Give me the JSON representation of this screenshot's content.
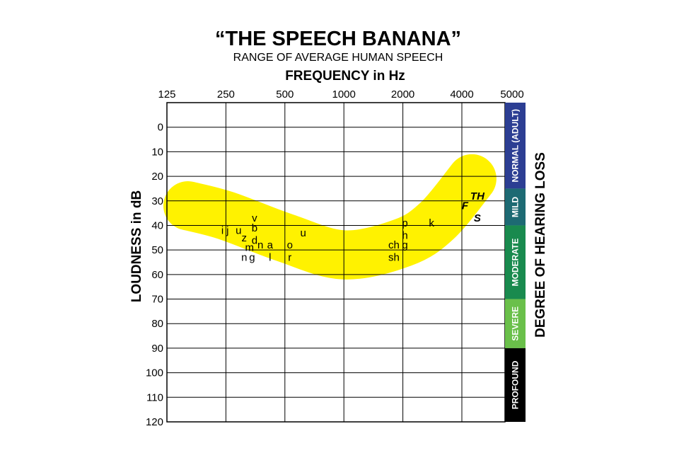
{
  "chart_data": {
    "type": "scatter",
    "title": "“THE SPEECH BANANA”",
    "subtitle": "RANGE OF AVERAGE HUMAN SPEECH",
    "xlabel": "FREQUENCY in Hz",
    "ylabel": "LOUDNESS in dB",
    "x_scale": "log2",
    "y_inverted": true,
    "x_ticks": [
      {
        "value": 125,
        "label": "125"
      },
      {
        "value": 250,
        "label": "250"
      },
      {
        "value": 500,
        "label": "500"
      },
      {
        "value": 1000,
        "label": "1000"
      },
      {
        "value": 2000,
        "label": "2000"
      },
      {
        "value": 4000,
        "label": "4000"
      },
      {
        "value": 5000,
        "label": "5000"
      }
    ],
    "y_ticks": [
      {
        "value": 0,
        "label": "0"
      },
      {
        "value": 10,
        "label": "10"
      },
      {
        "value": 20,
        "label": "20"
      },
      {
        "value": 30,
        "label": "30"
      },
      {
        "value": 40,
        "label": "40"
      },
      {
        "value": 50,
        "label": "50"
      },
      {
        "value": 60,
        "label": "60"
      },
      {
        "value": 70,
        "label": "70"
      },
      {
        "value": 80,
        "label": "80"
      },
      {
        "value": 90,
        "label": "90"
      },
      {
        "value": 100,
        "label": "100"
      },
      {
        "value": 110,
        "label": "110"
      },
      {
        "value": 120,
        "label": "120"
      }
    ],
    "xlim": [
      125,
      6400
    ],
    "ylim": [
      -10,
      120
    ],
    "grid": true,
    "banana": {
      "color": "#fff200",
      "center_points": [
        [
          160,
          32
        ],
        [
          250,
          36
        ],
        [
          500,
          45
        ],
        [
          1000,
          52
        ],
        [
          2000,
          47
        ],
        [
          3000,
          38
        ],
        [
          4500,
          21
        ]
      ],
      "thickness_db": 20
    },
    "points": [
      {
        "label": "i",
        "x": 240,
        "y": 42,
        "bold": false
      },
      {
        "label": "j",
        "x": 255,
        "y": 42,
        "bold": false
      },
      {
        "label": "u",
        "x": 290,
        "y": 42,
        "bold": false
      },
      {
        "label": "z",
        "x": 310,
        "y": 45,
        "bold": false
      },
      {
        "label": "v",
        "x": 350,
        "y": 37,
        "bold": false
      },
      {
        "label": "b",
        "x": 350,
        "y": 41,
        "bold": false
      },
      {
        "label": "d",
        "x": 350,
        "y": 46,
        "bold": false
      },
      {
        "label": "m",
        "x": 330,
        "y": 49,
        "bold": false
      },
      {
        "label": "n",
        "x": 310,
        "y": 53,
        "bold": false
      },
      {
        "label": "g",
        "x": 340,
        "y": 53,
        "bold": false
      },
      {
        "label": "n",
        "x": 375,
        "y": 48,
        "bold": false
      },
      {
        "label": "a",
        "x": 420,
        "y": 48,
        "bold": false
      },
      {
        "label": "l",
        "x": 420,
        "y": 53,
        "bold": false
      },
      {
        "label": "o",
        "x": 530,
        "y": 48,
        "bold": false
      },
      {
        "label": "r",
        "x": 530,
        "y": 53,
        "bold": false
      },
      {
        "label": "u",
        "x": 620,
        "y": 43,
        "bold": false
      },
      {
        "label": "ch",
        "x": 1800,
        "y": 48,
        "bold": false
      },
      {
        "label": "sh",
        "x": 1800,
        "y": 53,
        "bold": false
      },
      {
        "label": "p",
        "x": 2050,
        "y": 39,
        "bold": false
      },
      {
        "label": "h",
        "x": 2050,
        "y": 44,
        "bold": false
      },
      {
        "label": "g",
        "x": 2050,
        "y": 48,
        "bold": false
      },
      {
        "label": "k",
        "x": 2800,
        "y": 39,
        "bold": false
      },
      {
        "label": "F",
        "x": 4150,
        "y": 32,
        "bold": true
      },
      {
        "label": "TH",
        "x": 4800,
        "y": 28,
        "bold": true
      },
      {
        "label": "S",
        "x": 4800,
        "y": 37,
        "bold": true
      }
    ],
    "hearing_loss": {
      "title": "DEGREE OF HEARING LOSS",
      "bands": [
        {
          "label": "NORMAL (ADULT)",
          "from": -10,
          "to": 25,
          "color": "#2c3e93"
        },
        {
          "label": "MILD",
          "from": 25,
          "to": 40,
          "color": "#1d6a73"
        },
        {
          "label": "MODERATE",
          "from": 40,
          "to": 70,
          "color": "#198a4e"
        },
        {
          "label": "SEVERE",
          "from": 70,
          "to": 90,
          "color": "#6ac04a"
        },
        {
          "label": "PROFOUND",
          "from": 90,
          "to": 120,
          "color": "#000000"
        }
      ]
    }
  }
}
